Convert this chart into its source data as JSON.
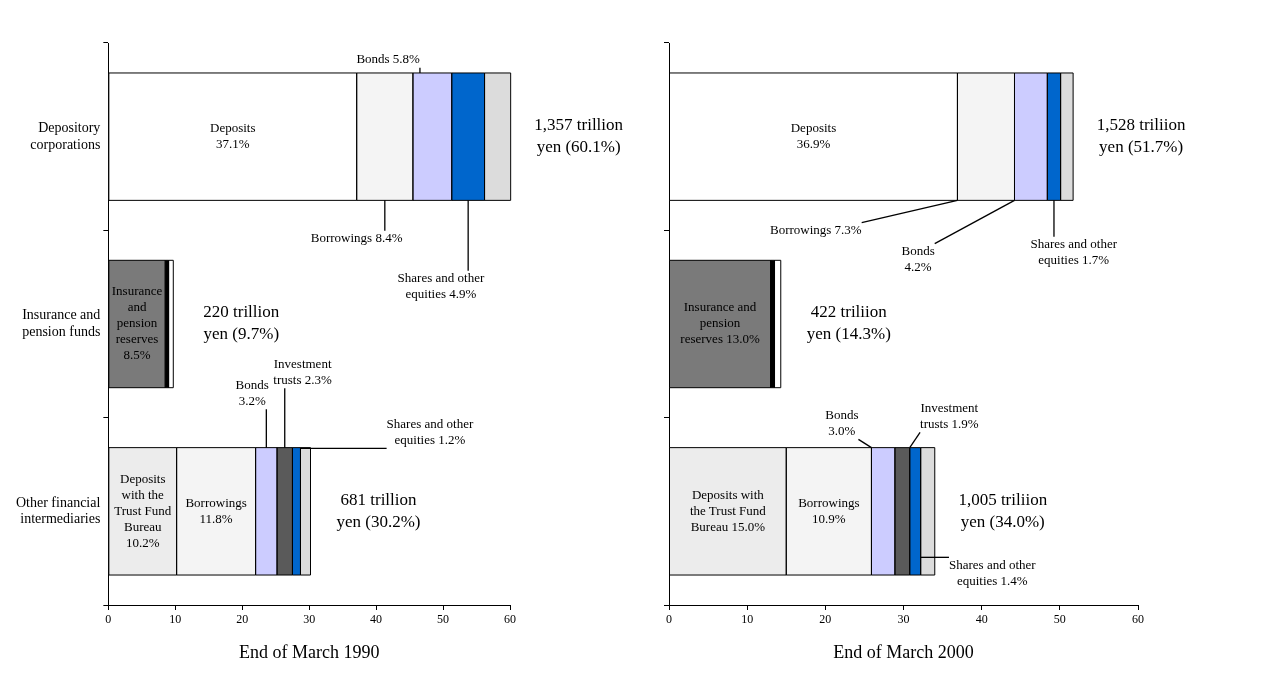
{
  "chart_data": [
    {
      "type": "bar",
      "orientation": "horizontal",
      "stacked": true,
      "categories": [
        "Depository corporations",
        "Insurance and pension funds",
        "Other financial intermediaries"
      ],
      "xlabel": "End of March 1990",
      "xlim": [
        0,
        60
      ],
      "xticks": [
        0,
        10,
        20,
        30,
        40,
        50,
        60
      ],
      "series": [
        {
          "name": "Deposits  with the Trust Fund Bureau",
          "color": "#ececec",
          "values": [
            null,
            null,
            10.2
          ],
          "value_labels": [
            null,
            null,
            "10.2%"
          ]
        },
        {
          "name": "Insurance and pension reserves",
          "color": "#7a7a7a",
          "values": [
            null,
            8.5,
            null
          ],
          "value_labels": [
            null,
            "8.5%",
            null
          ]
        },
        {
          "name": "Deposits",
          "color": "#ffffff",
          "values": [
            37.1,
            null,
            null
          ],
          "value_labels": [
            "37.1%",
            null,
            null
          ]
        },
        {
          "name": "Borrowings",
          "color": "#f4f4f4",
          "values": [
            8.4,
            null,
            11.8
          ],
          "value_labels": [
            "8.4%",
            null,
            "11.8%"
          ]
        },
        {
          "name": "Bonds",
          "color": "#ccccff",
          "values": [
            5.8,
            null,
            3.2
          ],
          "value_labels": [
            "5.8%",
            null,
            "3.2%"
          ]
        },
        {
          "name": "Investment trusts",
          "color": "#5a5a5a",
          "values": [
            null,
            null,
            2.3
          ],
          "value_labels": [
            null,
            null,
            "2.3%"
          ]
        },
        {
          "name": "Shares and other equities",
          "color": "#0066cc",
          "values": [
            4.9,
            null,
            1.2
          ],
          "value_labels": [
            "4.9%",
            null,
            "1.2%"
          ]
        },
        {
          "color": "#000000",
          "values": [
            null,
            0.5,
            null
          ]
        },
        {
          "colors": [
            "#dcdcdc",
            "#ffffff",
            "#dcdcdc"
          ],
          "values": [
            3.9,
            0.7,
            1.5
          ]
        }
      ],
      "totals": [
        "1,357 trillion yen (60.1%)",
        "220 trillion yen (9.7%)",
        "681 trillion yen (30.2%)"
      ]
    },
    {
      "type": "bar",
      "orientation": "horizontal",
      "stacked": true,
      "categories": [
        null,
        null,
        null
      ],
      "xlabel": "End of March 2000",
      "xlim": [
        0,
        60
      ],
      "xticks": [
        0,
        10,
        20,
        30,
        40,
        50,
        60
      ],
      "series": [
        {
          "name": "Deposits with the Trust Fund Bureau",
          "color": "#ececec",
          "values": [
            null,
            null,
            15.0
          ],
          "value_labels": [
            null,
            null,
            "15.0%"
          ]
        },
        {
          "name": "Insurance and pension reserves",
          "color": "#7a7a7a",
          "values": [
            null,
            13.0,
            null
          ],
          "value_labels": [
            null,
            "13.0%",
            null
          ]
        },
        {
          "name": "Deposits",
          "color": "#ffffff",
          "values": [
            36.9,
            null,
            null
          ],
          "value_labels": [
            "36.9%",
            null,
            null
          ]
        },
        {
          "name": "Borrowings",
          "color": "#f4f4f4",
          "values": [
            7.3,
            null,
            10.9
          ],
          "value_labels": [
            "7.3%",
            null,
            "10.9%"
          ]
        },
        {
          "name": "Bonds",
          "color": "#ccccff",
          "values": [
            4.2,
            null,
            3.0
          ],
          "value_labels": [
            "4.2%",
            null,
            "3.0%"
          ]
        },
        {
          "name": "Investment trusts",
          "color": "#5a5a5a",
          "values": [
            null,
            null,
            1.9
          ],
          "value_labels": [
            null,
            null,
            "1.9%"
          ]
        },
        {
          "name": "Shares and other equities",
          "color": "#0066cc",
          "values": [
            1.7,
            null,
            1.4
          ],
          "value_labels": [
            "1.7%",
            null,
            "1.4%"
          ]
        },
        {
          "color": "#000000",
          "values": [
            null,
            0.5,
            null
          ]
        },
        {
          "colors": [
            "#dcdcdc",
            "#ffffff",
            "#dcdcdc"
          ],
          "values": [
            1.6,
            0.8,
            1.8
          ]
        }
      ],
      "totals": [
        "1,528 triliion yen (51.7%)",
        "422 triliion yen (14.3%)",
        "1,005 triliion yen (34.0%)"
      ]
    }
  ]
}
